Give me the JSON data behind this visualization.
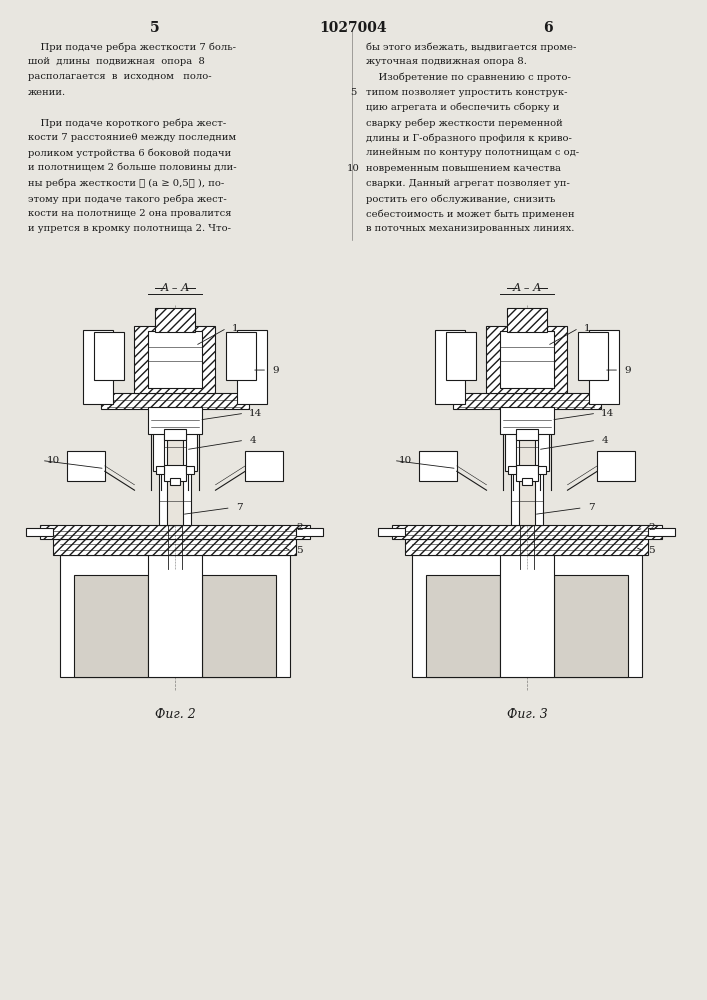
{
  "bg_color": "#e8e6e0",
  "text_color": "#1a1a1a",
  "page_number_left": "5",
  "page_number_center": "1027004",
  "page_number_right": "6",
  "left_text_lines": [
    "    При подаче ребра жесткости 7 боль-",
    "шой  длины  подвижная  опора  8",
    "располагается  в  исходном   поло-",
    "жении.",
    "",
    "    При подаче короткого ребра жест-",
    "кости 7 расстояниеθ между последним",
    "роликом устройства 6 боковой подачи",
    "и полотнищем 2 больше половины дли-",
    "ны ребра жесткости ℓ (а ≥ 0,5ℓ ), по-",
    "этому при подаче такого ребра жест-",
    "кости на полотнище 2 она провалится",
    "и упрется в кромку полотнища 2. Что-"
  ],
  "right_text_lines": [
    "бы этого избежать, выдвигается проме-",
    "жуточная подвижная опора 8.",
    "    Изобретение по сравнению с прото-",
    "типом позволяет упростить конструк-",
    "цию агрегата и обеспечить сборку и",
    "сварку ребер жесткости переменной",
    "длины и Г-образного профиля к криво-",
    "линейным по контуру полотнищам с од-",
    "новременным повышением качества",
    "сварки. Данный агрегат позволяет уп-",
    "ростить его обслуживание, снизить",
    "себестоимость и может быть применен",
    "в поточных механизированных линиях."
  ],
  "fig2_caption": "Фиг. 2",
  "fig3_caption": "Фиг. 3",
  "section_label": "А – А"
}
